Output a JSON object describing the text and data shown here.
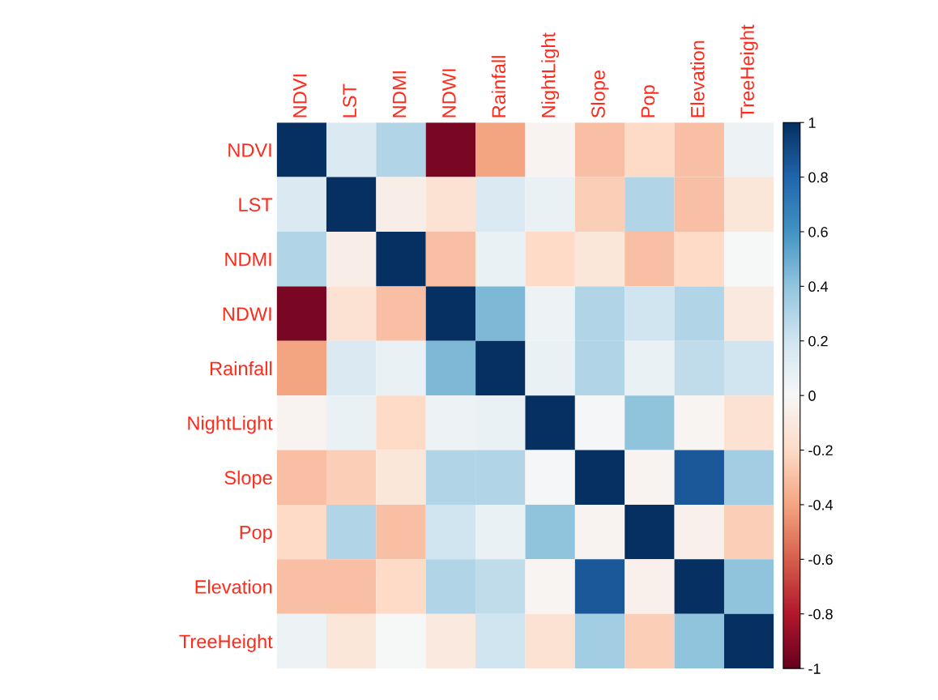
{
  "chart_data": {
    "type": "heatmap",
    "categories": [
      "NDVI",
      "LST",
      "NDMI",
      "NDWI",
      "Rainfall",
      "NightLight",
      "Slope",
      "Pop",
      "Elevation",
      "TreeHeight"
    ],
    "y_categories": [
      "NDVI",
      "LST",
      "NDMI",
      "NDWI",
      "Rainfall",
      "NightLight",
      "Slope",
      "Pop",
      "Elevation",
      "TreeHeight"
    ],
    "cells": [
      [
        1,
        0.15,
        0.3,
        -0.95,
        -0.4,
        -0.03,
        -0.3,
        -0.2,
        -0.3,
        0.05
      ],
      [
        0.15,
        1,
        -0.07,
        -0.15,
        0.15,
        0.07,
        -0.25,
        0.3,
        -0.3,
        -0.12
      ],
      [
        0.3,
        -0.07,
        1,
        -0.3,
        0.07,
        -0.2,
        -0.12,
        -0.3,
        -0.2,
        0.0
      ],
      [
        -0.95,
        -0.15,
        -0.3,
        1,
        0.45,
        0.05,
        0.3,
        0.2,
        0.3,
        -0.1
      ],
      [
        -0.4,
        0.15,
        0.07,
        0.45,
        1,
        0.07,
        0.3,
        0.07,
        0.25,
        0.2
      ],
      [
        -0.03,
        0.07,
        -0.2,
        0.05,
        0.07,
        1,
        0.01,
        0.4,
        -0.02,
        -0.15
      ],
      [
        -0.3,
        -0.25,
        -0.12,
        0.3,
        0.3,
        0.01,
        1,
        -0.03,
        0.85,
        0.35
      ],
      [
        -0.2,
        0.3,
        -0.3,
        0.2,
        0.07,
        0.4,
        -0.03,
        1,
        -0.05,
        -0.25
      ],
      [
        -0.3,
        -0.3,
        -0.2,
        0.3,
        0.25,
        -0.02,
        0.85,
        -0.05,
        1,
        0.4
      ],
      [
        0.05,
        -0.12,
        0.0,
        -0.1,
        0.2,
        -0.15,
        0.35,
        -0.25,
        0.4,
        1
      ]
    ],
    "clim": [
      -1,
      1
    ],
    "cticks": [
      -1,
      -0.8,
      -0.6,
      -0.4,
      -0.2,
      0,
      0.2,
      0.4,
      0.6,
      0.8,
      1
    ],
    "grid": false
  }
}
